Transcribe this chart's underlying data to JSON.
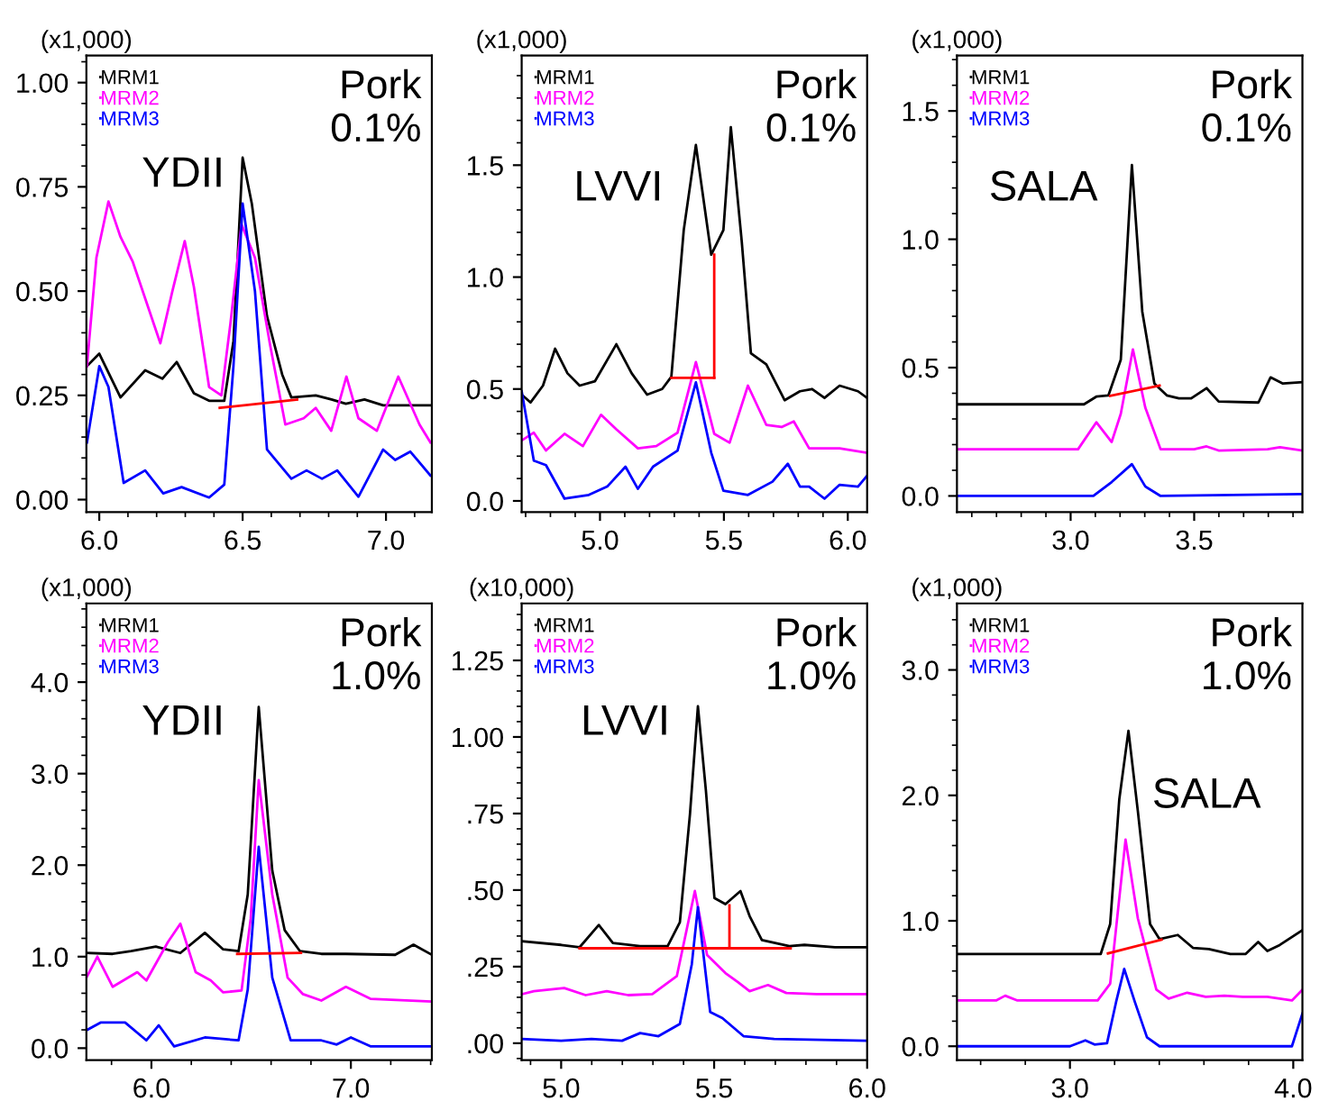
{
  "chart_data": [
    {
      "type": "line",
      "ylabel": "(x1,000)",
      "annotations": [
        "Pork\n0.1%",
        "YDII"
      ],
      "legend": "top left",
      "xlim": [
        5.955,
        7.16
      ],
      "ylim": [
        -0.03,
        1.065
      ],
      "xticks": [
        {
          "value": 6,
          "label": "6.0"
        },
        {
          "value": 6.5,
          "label": "6.5"
        },
        {
          "value": 7,
          "label": "7.0"
        }
      ],
      "yticks": [
        {
          "value": 0,
          "label": "0.00"
        },
        {
          "value": 0.25,
          "label": "0.25"
        },
        {
          "value": 0.5,
          "label": "0.50"
        },
        {
          "value": 0.75,
          "label": "0.75"
        },
        {
          "value": 1,
          "label": "1.00"
        }
      ],
      "series": [
        {
          "name": "MRM1",
          "color": "#000000",
          "x": [
            5.957,
            6.0,
            6.074,
            6.16,
            6.22,
            6.27,
            6.33,
            6.383,
            6.436,
            6.468,
            6.5,
            6.532,
            6.585,
            6.638,
            6.67,
            6.755,
            6.81,
            6.86,
            6.925,
            6.99,
            7.155
          ],
          "values": [
            0.32,
            0.35,
            0.245,
            0.31,
            0.29,
            0.33,
            0.255,
            0.237,
            0.237,
            0.38,
            0.82,
            0.71,
            0.44,
            0.3,
            0.245,
            0.25,
            0.24,
            0.23,
            0.24,
            0.226,
            0.226
          ]
        },
        {
          "name": "MRM2",
          "color": "#ff00ff",
          "x": [
            5.957,
            5.99,
            6.032,
            6.074,
            6.117,
            6.213,
            6.255,
            6.298,
            6.33,
            6.383,
            6.426,
            6.457,
            6.496,
            6.543,
            6.596,
            6.649,
            6.713,
            6.755,
            6.809,
            6.862,
            6.904,
            6.968,
            7.043,
            7.117,
            7.155
          ],
          "values": [
            0.32,
            0.58,
            0.715,
            0.63,
            0.57,
            0.375,
            0.5,
            0.62,
            0.51,
            0.27,
            0.25,
            0.42,
            0.66,
            0.58,
            0.37,
            0.18,
            0.195,
            0.22,
            0.165,
            0.295,
            0.195,
            0.165,
            0.295,
            0.18,
            0.137
          ]
        },
        {
          "name": "MRM3",
          "color": "#0000ff",
          "x": [
            5.957,
            6.0,
            6.032,
            6.085,
            6.16,
            6.223,
            6.287,
            6.383,
            6.436,
            6.468,
            6.5,
            6.543,
            6.585,
            6.67,
            6.723,
            6.777,
            6.83,
            6.904,
            6.99,
            7.032,
            7.085,
            7.155
          ],
          "values": [
            0.137,
            0.32,
            0.27,
            0.04,
            0.07,
            0.015,
            0.03,
            0.005,
            0.036,
            0.32,
            0.71,
            0.5,
            0.12,
            0.05,
            0.07,
            0.05,
            0.07,
            0.007,
            0.12,
            0.095,
            0.115,
            0.058
          ]
        },
        {
          "color": "#ff0000",
          "x": [
            6.42,
            6.69
          ],
          "values": [
            0.22,
            0.24
          ]
        }
      ]
    },
    {
      "type": "line",
      "ylabel": "(x1,000)",
      "annotations": [
        "Pork\n0.1%",
        "LVVI"
      ],
      "legend": "top left",
      "xlim": [
        4.684,
        6.078
      ],
      "ylim": [
        -0.05,
        1.99
      ],
      "xticks": [
        {
          "value": 5,
          "label": "5.0"
        },
        {
          "value": 5.5,
          "label": "5.5"
        },
        {
          "value": 6,
          "label": "6.0"
        }
      ],
      "yticks": [
        {
          "value": 0,
          "label": "0.0"
        },
        {
          "value": 0.5,
          "label": "0.5"
        },
        {
          "value": 1,
          "label": "1.0"
        },
        {
          "value": 1.5,
          "label": "1.5"
        }
      ],
      "series": [
        {
          "name": "MRM1",
          "color": "#000000",
          "x": [
            4.684,
            4.72,
            4.77,
            4.819,
            4.869,
            4.918,
            4.98,
            5.066,
            5.128,
            5.19,
            5.251,
            5.288,
            5.338,
            5.387,
            5.449,
            5.498,
            5.528,
            5.572,
            5.609,
            5.671,
            5.745,
            5.807,
            5.856,
            5.906,
            5.967,
            6.041,
            6.078
          ],
          "values": [
            0.475,
            0.44,
            0.515,
            0.68,
            0.57,
            0.515,
            0.535,
            0.7,
            0.57,
            0.475,
            0.5,
            0.555,
            1.21,
            1.59,
            1.1,
            1.21,
            1.67,
            1.16,
            0.66,
            0.61,
            0.45,
            0.49,
            0.5,
            0.46,
            0.515,
            0.49,
            0.46
          ]
        },
        {
          "name": "MRM2",
          "color": "#ff00ff",
          "x": [
            4.684,
            4.733,
            4.782,
            4.857,
            4.931,
            5.004,
            5.066,
            5.153,
            5.227,
            5.313,
            5.387,
            5.461,
            5.523,
            5.597,
            5.671,
            5.733,
            5.782,
            5.844,
            5.967,
            6.078
          ],
          "values": [
            0.27,
            0.305,
            0.225,
            0.3,
            0.245,
            0.385,
            0.32,
            0.235,
            0.245,
            0.305,
            0.62,
            0.3,
            0.26,
            0.515,
            0.34,
            0.33,
            0.355,
            0.235,
            0.235,
            0.215
          ]
        },
        {
          "name": "MRM3",
          "color": "#0000ff",
          "x": [
            4.684,
            4.733,
            4.782,
            4.857,
            4.955,
            5.029,
            5.103,
            5.153,
            5.214,
            5.313,
            5.387,
            5.449,
            5.498,
            5.597,
            5.696,
            5.758,
            5.807,
            5.844,
            5.906,
            5.967,
            6.041,
            6.078
          ],
          "values": [
            0.49,
            0.18,
            0.16,
            0.01,
            0.027,
            0.064,
            0.153,
            0.054,
            0.153,
            0.225,
            0.53,
            0.215,
            0.046,
            0.027,
            0.086,
            0.166,
            0.064,
            0.064,
            0.01,
            0.072,
            0.064,
            0.113
          ]
        },
        {
          "color": "#ff0000",
          "x": [
            5.288,
            5.461
          ],
          "values": [
            0.55,
            0.55
          ]
        },
        {
          "color": "#ff0000",
          "x": [
            5.461,
            5.461
          ],
          "values": [
            0.55,
            1.1
          ]
        }
      ]
    },
    {
      "type": "line",
      "ylabel": "(x1,000)",
      "annotations": [
        "Pork\n0.1%",
        "SALA"
      ],
      "legend": "top left",
      "xlim": [
        2.54,
        3.938
      ],
      "ylim": [
        -0.063,
        1.716
      ],
      "xticks": [
        {
          "value": 3,
          "label": "3.0"
        },
        {
          "value": 3.5,
          "label": "3.5"
        }
      ],
      "yticks": [
        {
          "value": 0,
          "label": "0.0"
        },
        {
          "value": 0.5,
          "label": "0.5"
        },
        {
          "value": 1,
          "label": "1.0"
        },
        {
          "value": 1.5,
          "label": "1.5"
        }
      ],
      "series": [
        {
          "name": "MRM1",
          "color": "#000000",
          "x": [
            2.54,
            3.054,
            3.104,
            3.153,
            3.203,
            3.248,
            3.29,
            3.339,
            3.389,
            3.438,
            3.488,
            3.55,
            3.599,
            3.76,
            3.809,
            3.859,
            3.938
          ],
          "values": [
            0.357,
            0.357,
            0.387,
            0.392,
            0.531,
            1.289,
            0.718,
            0.438,
            0.392,
            0.38,
            0.38,
            0.42,
            0.368,
            0.364,
            0.462,
            0.438,
            0.443
          ]
        },
        {
          "name": "MRM2",
          "color": "#ff00ff",
          "x": [
            2.54,
            3.03,
            3.104,
            3.166,
            3.203,
            3.252,
            3.302,
            3.364,
            3.5,
            3.55,
            3.599,
            3.797,
            3.847,
            3.938
          ],
          "values": [
            0.182,
            0.182,
            0.287,
            0.21,
            0.32,
            0.571,
            0.345,
            0.182,
            0.182,
            0.193,
            0.177,
            0.182,
            0.19,
            0.177
          ]
        },
        {
          "name": "MRM3",
          "color": "#0000ff",
          "x": [
            2.54,
            3.092,
            3.166,
            3.248,
            3.302,
            3.364,
            3.938
          ],
          "values": [
            0,
            0,
            0.054,
            0.124,
            0.037,
            0,
            0.007
          ]
        },
        {
          "color": "#ff0000",
          "x": [
            3.16,
            3.36
          ],
          "values": [
            0.39,
            0.43
          ]
        }
      ]
    },
    {
      "type": "line",
      "ylabel": "(x1,000)",
      "annotations": [
        "Pork\n1.0%",
        "YDII"
      ],
      "legend": "top left",
      "xlim": [
        5.674,
        7.406
      ],
      "ylim": [
        -0.13,
        4.86
      ],
      "xticks": [
        {
          "value": 6,
          "label": "6.0"
        },
        {
          "value": 7,
          "label": "7.0"
        }
      ],
      "yticks": [
        {
          "value": 0,
          "label": "0.0"
        },
        {
          "value": 1,
          "label": "1.0"
        },
        {
          "value": 2,
          "label": "2.0"
        },
        {
          "value": 3,
          "label": "3.0"
        },
        {
          "value": 4,
          "label": "4.0"
        }
      ],
      "series": [
        {
          "name": "MRM1",
          "color": "#000000",
          "x": [
            5.674,
            5.806,
            5.898,
            6.022,
            6.145,
            6.268,
            6.36,
            6.437,
            6.483,
            6.538,
            6.606,
            6.668,
            6.745,
            6.852,
            6.975,
            7.222,
            7.314,
            7.406
          ],
          "values": [
            1.04,
            1.03,
            1.06,
            1.11,
            1.04,
            1.26,
            1.08,
            1.06,
            1.68,
            3.73,
            1.94,
            1.29,
            1.06,
            1.03,
            1.03,
            1.02,
            1.13,
            1.02
          ]
        },
        {
          "name": "MRM2",
          "color": "#ff00ff",
          "x": [
            5.674,
            5.729,
            5.806,
            5.929,
            5.975,
            6.083,
            6.145,
            6.222,
            6.298,
            6.36,
            6.452,
            6.498,
            6.538,
            6.606,
            6.683,
            6.76,
            6.852,
            6.975,
            7.098,
            7.406
          ],
          "values": [
            0.77,
            1.0,
            0.67,
            0.83,
            0.74,
            1.16,
            1.36,
            0.83,
            0.74,
            0.61,
            0.63,
            1.42,
            2.93,
            1.68,
            0.77,
            0.59,
            0.52,
            0.67,
            0.54,
            0.51
          ]
        },
        {
          "name": "MRM3",
          "color": "#0000ff",
          "x": [
            5.674,
            5.745,
            5.868,
            5.975,
            6.037,
            6.114,
            6.268,
            6.437,
            6.483,
            6.538,
            6.606,
            6.698,
            6.852,
            6.929,
            7.0,
            7.098,
            7.406
          ],
          "values": [
            0.195,
            0.28,
            0.28,
            0.085,
            0.25,
            0.02,
            0.117,
            0.085,
            0.64,
            2.2,
            0.77,
            0.085,
            0.085,
            0.04,
            0.117,
            0.02,
            0.02
          ]
        },
        {
          "color": "#ff0000",
          "x": [
            6.43,
            6.75
          ],
          "values": [
            1.03,
            1.04
          ]
        }
      ]
    },
    {
      "type": "line",
      "ylabel": "(x10,000)",
      "annotations": [
        "Pork\n1.0%",
        "LVVI"
      ],
      "legend": "top left",
      "xlim": [
        4.871,
        6.0
      ],
      "ylim": [
        -0.055,
        1.436
      ],
      "xticks": [
        {
          "value": 5,
          "label": "5.0"
        },
        {
          "value": 5.5,
          "label": "5.5"
        },
        {
          "value": 6,
          "label": "6.0"
        }
      ],
      "yticks": [
        {
          "value": 0,
          "label": ".00"
        },
        {
          "value": 0.25,
          "label": ".25"
        },
        {
          "value": 0.5,
          "label": ".50"
        },
        {
          "value": 0.75,
          "label": ".75"
        },
        {
          "value": 1,
          "label": "1.00"
        },
        {
          "value": 1.25,
          "label": "1.25"
        }
      ],
      "series": [
        {
          "name": "MRM1",
          "color": "#000000",
          "x": [
            4.871,
            5.0,
            5.06,
            5.123,
            5.169,
            5.258,
            5.348,
            5.388,
            5.421,
            5.447,
            5.473,
            5.501,
            5.537,
            5.586,
            5.616,
            5.656,
            5.746,
            5.795,
            5.895,
            6.0
          ],
          "values": [
            0.333,
            0.321,
            0.313,
            0.386,
            0.327,
            0.317,
            0.317,
            0.395,
            0.748,
            1.1,
            0.826,
            0.474,
            0.454,
            0.497,
            0.415,
            0.337,
            0.317,
            0.321,
            0.313,
            0.313
          ]
        },
        {
          "name": "MRM2",
          "color": "#ff00ff",
          "x": [
            4.871,
            4.911,
            5.01,
            5.08,
            5.149,
            5.219,
            5.298,
            5.378,
            5.437,
            5.477,
            5.537,
            5.577,
            5.616,
            5.676,
            5.736,
            5.835,
            6.0
          ],
          "values": [
            0.16,
            0.17,
            0.18,
            0.157,
            0.17,
            0.157,
            0.16,
            0.219,
            0.497,
            0.288,
            0.229,
            0.2,
            0.17,
            0.19,
            0.164,
            0.16,
            0.16
          ]
        },
        {
          "name": "MRM3",
          "color": "#0000ff",
          "x": [
            4.871,
            5.0,
            5.099,
            5.199,
            5.258,
            5.318,
            5.388,
            5.427,
            5.447,
            5.487,
            5.527,
            5.596,
            5.696,
            6.0
          ],
          "values": [
            0.014,
            0.008,
            0.014,
            0.008,
            0.033,
            0.023,
            0.063,
            0.258,
            0.444,
            0.102,
            0.082,
            0.023,
            0.014,
            0.008
          ]
        },
        {
          "color": "#ff0000",
          "x": [
            5.06,
            5.75
          ],
          "values": [
            0.31,
            0.31
          ]
        },
        {
          "color": "#ff0000",
          "x": [
            5.55,
            5.55
          ],
          "values": [
            0.31,
            0.45
          ]
        }
      ]
    },
    {
      "type": "line",
      "ylabel": "(x1,000)",
      "annotations": [
        "Pork\n1.0%",
        "SALA"
      ],
      "legend": "top left",
      "xlim": [
        2.494,
        4.041
      ],
      "ylim": [
        -0.11,
        3.53
      ],
      "xticks": [
        {
          "value": 3,
          "label": "3.0"
        },
        {
          "value": 4,
          "label": "4.0"
        }
      ],
      "yticks": [
        {
          "value": 0,
          "label": "0.0"
        },
        {
          "value": 1,
          "label": "1.0"
        },
        {
          "value": 2,
          "label": "2.0"
        },
        {
          "value": 3,
          "label": "3.0"
        }
      ],
      "series": [
        {
          "name": "MRM1",
          "color": "#000000",
          "x": [
            2.494,
            3.055,
            3.138,
            3.18,
            3.221,
            3.262,
            3.304,
            3.359,
            3.401,
            3.483,
            3.552,
            3.622,
            3.718,
            3.787,
            3.843,
            3.884,
            3.939,
            4.041
          ],
          "values": [
            0.736,
            0.736,
            0.736,
            0.973,
            1.97,
            2.515,
            1.875,
            0.973,
            0.854,
            0.887,
            0.783,
            0.774,
            0.736,
            0.736,
            0.831,
            0.759,
            0.807,
            0.925
          ]
        },
        {
          "name": "MRM2",
          "color": "#ff00ff",
          "x": [
            2.494,
            2.669,
            2.71,
            2.765,
            3.124,
            3.18,
            3.249,
            3.304,
            3.387,
            3.442,
            3.525,
            3.608,
            3.691,
            3.773,
            3.884,
            3.994,
            4.041
          ],
          "values": [
            0.365,
            0.365,
            0.403,
            0.365,
            0.365,
            0.498,
            1.647,
            1.02,
            0.451,
            0.38,
            0.427,
            0.394,
            0.403,
            0.394,
            0.394,
            0.365,
            0.451
          ]
        },
        {
          "name": "MRM3",
          "color": "#0000ff",
          "x": [
            2.494,
            3.0,
            3.069,
            3.11,
            3.166,
            3.207,
            3.243,
            3.29,
            3.345,
            3.401,
            3.994,
            4.041
          ],
          "values": [
            0,
            0,
            0.047,
            0.014,
            0.024,
            0.356,
            0.617,
            0.356,
            0.071,
            0,
            0,
            0.261
          ]
        },
        {
          "color": "#ff0000",
          "x": [
            3.17,
            3.41
          ],
          "values": [
            0.74,
            0.85
          ]
        }
      ]
    }
  ]
}
